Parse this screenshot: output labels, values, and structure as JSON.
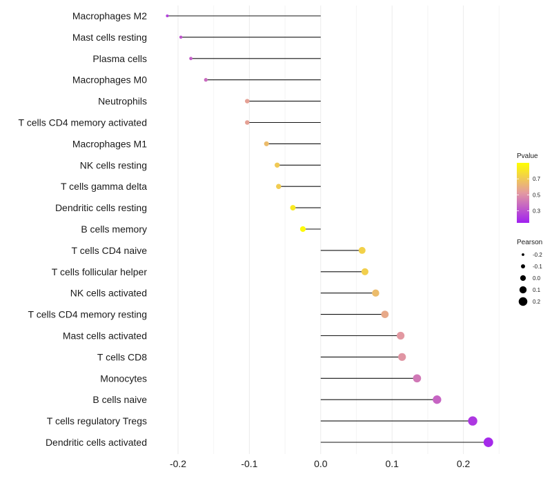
{
  "chart_data": {
    "type": "lollipop",
    "title": "",
    "xlabel": "",
    "ylabel": "",
    "xlim": [
      -0.24,
      0.255
    ],
    "xticks": [
      -0.2,
      -0.1,
      0.0,
      0.1,
      0.2
    ],
    "xtick_labels": [
      "-0.2",
      "-0.1",
      "0.0",
      "0.1",
      "0.2"
    ],
    "grid": true,
    "baseline": 0.0,
    "categories": [
      "Macrophages M2",
      "Mast cells resting",
      "Plasma cells",
      "Macrophages M0",
      "Neutrophils",
      "T cells CD4 memory activated",
      "Macrophages M1",
      "NK cells resting",
      "T cells gamma delta",
      "Dendritic cells resting",
      "B cells memory",
      "T cells CD4 naive",
      "T cells follicular helper",
      "NK cells activated",
      "T cells CD4 memory resting",
      "Mast cells activated",
      "T cells CD8",
      "Monocytes",
      "B cells naive",
      "T cells regulatory  Tregs ",
      "Dendritic cells activated"
    ],
    "pearson": [
      -0.215,
      -0.196,
      -0.182,
      -0.161,
      -0.103,
      -0.103,
      -0.076,
      -0.061,
      -0.059,
      -0.039,
      -0.025,
      0.058,
      0.062,
      0.077,
      0.09,
      0.112,
      0.114,
      0.135,
      0.163,
      0.213,
      0.235
    ],
    "pvalue": [
      0.25,
      0.32,
      0.34,
      0.38,
      0.55,
      0.55,
      0.65,
      0.7,
      0.71,
      0.82,
      0.88,
      0.73,
      0.72,
      0.65,
      0.58,
      0.52,
      0.51,
      0.42,
      0.36,
      0.22,
      0.18
    ],
    "color_scale": {
      "name": "Pvalue",
      "low_color": "#a020f0",
      "mid_color": "#e39aa0",
      "high_color": "#ffff00",
      "range": [
        0.15,
        0.9
      ],
      "breaks": [
        0.3,
        0.5,
        0.7
      ],
      "labels": [
        "0.3",
        "0.5",
        "0.7"
      ]
    },
    "size_scale": {
      "name": "Pearson",
      "breaks": [
        -0.2,
        -0.1,
        0.0,
        0.1,
        0.2
      ],
      "labels": [
        "-0.2",
        "-0.1",
        "0.0",
        "0.1",
        "0.2"
      ]
    },
    "legend_position": "right"
  }
}
